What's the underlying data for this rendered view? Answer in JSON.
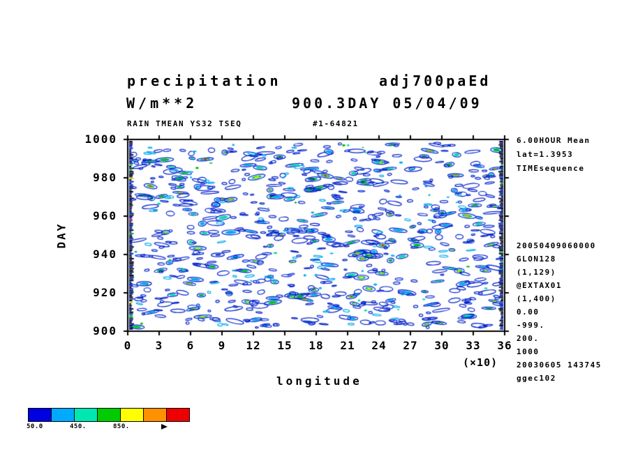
{
  "titles": {
    "line1_left": "precipitation",
    "line1_right": "adj700paEd",
    "line2_left": "W/m**2",
    "line2_right": "900.3DAY 05/04/09",
    "subheader_left": "RAIN TMEAN YS32 TSEQ",
    "subheader_right": "#1-64821"
  },
  "axes": {
    "ylabel": "DAY",
    "xlabel": "longitude",
    "x_scale_note": "(×10)",
    "y_tick_labels": [
      "1000",
      "980",
      "960",
      "940",
      "920",
      "900"
    ],
    "x_tick_labels": [
      "0",
      "3",
      "6",
      "9",
      "12",
      "15",
      "18",
      "21",
      "24",
      "27",
      "30",
      "33",
      "36"
    ]
  },
  "right_annotations_top": [
    "6.00HOUR Mean",
    "lat=1.3953",
    "TIMEsequence"
  ],
  "right_annotations_bottom": [
    "20050409060000",
    "GLON128",
    "(1,129)",
    "@EXTAX01",
    "(1,400)",
    "0.00",
    "-999.",
    "200.",
    "1000",
    "20030605 143745",
    "ggec102"
  ],
  "colorbar": {
    "colors": [
      "#0000e0",
      "#00aaff",
      "#00e8b0",
      "#00cc00",
      "#ffff00",
      "#ff9100",
      "#ee0000"
    ],
    "labels": [
      "50.0",
      "450.",
      "850."
    ],
    "label_lefts": [
      38,
      100,
      162
    ]
  },
  "chart_data": {
    "type": "heatmap",
    "title": "precipitation adj700paEd",
    "subtitle": "900.3DAY 05/04/09",
    "units": "W/m**2",
    "dataset": "RAIN TMEAN YS32 TSEQ #1-64821",
    "xlabel": "longitude (×10)",
    "ylabel": "DAY",
    "xlim": [
      0,
      36
    ],
    "ylim": [
      900,
      1000
    ],
    "x_ticks": [
      0,
      3,
      6,
      9,
      12,
      15,
      18,
      21,
      24,
      27,
      30,
      33,
      36
    ],
    "y_ticks": [
      1000,
      980,
      960,
      940,
      920,
      900
    ],
    "legend_labels": [
      "50.0",
      "450.",
      "850."
    ],
    "palette": {
      "blue": "#0022cc",
      "cyan": "#00aaee",
      "teal": "#00ddaa",
      "green": "#00bb00",
      "yellow": "#eeee00",
      "orange": "#ff8800",
      "red": "#dd0000"
    },
    "pattern": {
      "seed": 42,
      "clusters": 340,
      "streaks": 380,
      "description": "speckled precipitation blobs, mostly blue outlines with cyan/green/yellow/orange/red cores, dense dark bands at left and right edges"
    }
  }
}
